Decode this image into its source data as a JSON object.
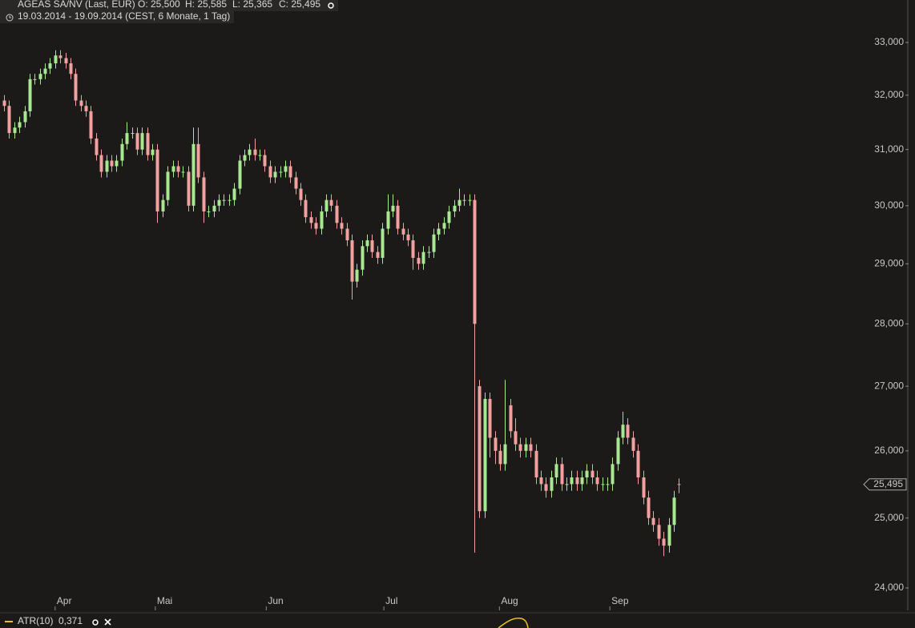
{
  "chart_data": {
    "type": "candlestick",
    "title": "AGEAS SA/NV (Last, EUR)",
    "ohlc_labels": [
      "O: 25,500",
      "H: 25,585",
      "L: 25,365",
      "C: 25,495"
    ],
    "subtitle": "19.03.2014 - 19.09.2014 (CEST, 6 Monate, 1 Tag)",
    "log": true,
    "up_color": "#a8e890",
    "down_color": "#f2a0a0",
    "ylim": [
      23.877,
      33.828
    ],
    "yticks": [
      {
        "value": 24,
        "label": "24,000"
      },
      {
        "value": 25,
        "label": "25,000"
      },
      {
        "value": 26,
        "label": "26,000"
      },
      {
        "value": 27,
        "label": "27,000"
      },
      {
        "value": 28,
        "label": "28,000"
      },
      {
        "value": 29,
        "label": "29,000"
      },
      {
        "value": 30,
        "label": "30,000"
      },
      {
        "value": 31,
        "label": "31,000"
      },
      {
        "value": 32,
        "label": "32,000"
      },
      {
        "value": 33,
        "label": "33,000"
      }
    ],
    "xlim": [
      -0.78,
      176.3
    ],
    "xticks": [
      {
        "value": 10,
        "label": "Apr"
      },
      {
        "value": 29.6,
        "label": "Mai"
      },
      {
        "value": 51.3,
        "label": "Jun"
      },
      {
        "value": 74.3,
        "label": "Jul"
      },
      {
        "value": 96.9,
        "label": "Aug"
      },
      {
        "value": 118.5,
        "label": "Sep"
      }
    ],
    "last_price": {
      "value": 25.495,
      "label": "25,495"
    },
    "indicator": {
      "name": "ATR(10)",
      "value_label": "0,371"
    },
    "open": [
      31.9,
      31.8,
      31.3,
      31.4,
      31.5,
      31.7,
      32.3,
      32.3,
      32.4,
      32.5,
      32.6,
      32.75,
      32.7,
      32.6,
      32.4,
      31.9,
      31.8,
      31.7,
      31.2,
      30.9,
      30.6,
      30.8,
      30.7,
      30.8,
      31.1,
      31.3,
      31.3,
      31.0,
      31.3,
      30.9,
      31.0,
      29.9,
      30.1,
      30.6,
      30.7,
      30.6,
      30.6,
      30.0,
      31.1,
      30.5,
      29.9,
      29.9,
      30.0,
      30.1,
      30.1,
      30.1,
      30.3,
      30.8,
      30.9,
      31.0,
      30.9,
      30.9,
      30.7,
      30.5,
      30.6,
      30.6,
      30.7,
      30.5,
      30.3,
      30.1,
      29.8,
      29.7,
      29.6,
      29.9,
      30.1,
      30.0,
      29.7,
      29.6,
      29.4,
      28.7,
      28.9,
      29.3,
      29.4,
      29.2,
      29.1,
      29.6,
      29.9,
      30.0,
      29.6,
      29.5,
      29.4,
      29.1,
      29.0,
      29.2,
      29.2,
      29.5,
      29.6,
      29.7,
      29.9,
      30.0,
      30.1,
      30.1,
      30.1,
      27.0,
      25.1,
      26.8,
      26.2,
      26.0,
      25.8,
      26.7,
      26.3,
      26.1,
      26.0,
      26.1,
      26.0,
      25.6,
      25.5,
      25.4,
      25.6,
      25.8,
      25.5,
      25.5,
      25.6,
      25.5,
      25.6,
      25.7,
      25.6,
      25.5,
      25.5,
      25.5,
      25.8,
      26.2,
      26.4,
      26.2,
      26.0,
      25.6,
      25.3,
      25.0,
      24.9,
      24.7,
      24.6,
      24.9,
      25.5
    ],
    "high": [
      32.0,
      31.9,
      31.5,
      31.6,
      31.8,
      32.4,
      32.4,
      32.5,
      32.6,
      32.7,
      32.85,
      32.85,
      32.8,
      32.7,
      32.5,
      32.0,
      31.9,
      31.8,
      31.3,
      31.0,
      30.9,
      30.9,
      30.9,
      31.2,
      31.5,
      31.4,
      31.4,
      31.4,
      31.4,
      31.1,
      31.1,
      30.2,
      30.7,
      30.8,
      30.8,
      30.7,
      30.7,
      31.4,
      31.4,
      30.6,
      30.0,
      30.1,
      30.2,
      30.2,
      30.2,
      30.4,
      30.9,
      31.0,
      31.1,
      31.2,
      31.0,
      31.0,
      30.8,
      30.7,
      30.7,
      30.8,
      30.8,
      30.6,
      30.4,
      30.2,
      29.9,
      29.8,
      30.0,
      30.2,
      30.2,
      30.1,
      29.8,
      29.7,
      29.5,
      29.0,
      29.4,
      29.5,
      29.5,
      29.3,
      29.7,
      30.2,
      30.2,
      30.1,
      29.7,
      29.6,
      29.5,
      29.2,
      29.3,
      29.3,
      29.6,
      29.7,
      29.8,
      30.0,
      30.1,
      30.3,
      30.2,
      30.2,
      30.2,
      27.1,
      26.9,
      26.9,
      26.3,
      26.1,
      27.1,
      26.8,
      26.5,
      26.2,
      26.2,
      26.2,
      26.1,
      25.7,
      25.6,
      25.7,
      25.9,
      25.9,
      25.6,
      25.7,
      25.7,
      25.7,
      25.8,
      25.8,
      25.7,
      25.6,
      25.6,
      25.9,
      26.3,
      26.6,
      26.5,
      26.3,
      26.1,
      25.7,
      25.4,
      25.1,
      25.0,
      24.8,
      25.0,
      25.4,
      25.585
    ],
    "low": [
      31.7,
      31.2,
      31.2,
      31.3,
      31.4,
      31.6,
      32.2,
      32.2,
      32.3,
      32.4,
      32.5,
      32.6,
      32.5,
      32.3,
      31.8,
      31.7,
      31.6,
      31.1,
      30.8,
      30.5,
      30.5,
      30.6,
      30.6,
      30.7,
      31.0,
      31.2,
      30.9,
      30.9,
      30.8,
      30.8,
      29.7,
      29.8,
      30.0,
      30.5,
      30.5,
      30.5,
      29.9,
      29.9,
      30.4,
      29.7,
      29.8,
      29.8,
      29.9,
      30.0,
      30.0,
      30.0,
      30.2,
      30.7,
      30.8,
      30.8,
      30.8,
      30.6,
      30.4,
      30.4,
      30.5,
      30.5,
      30.4,
      30.2,
      30.0,
      29.7,
      29.6,
      29.5,
      29.5,
      29.8,
      29.9,
      29.6,
      29.5,
      29.3,
      28.4,
      28.6,
      28.8,
      29.2,
      29.1,
      29.0,
      29.0,
      29.5,
      29.8,
      29.5,
      29.4,
      29.3,
      28.9,
      28.9,
      28.9,
      29.1,
      29.1,
      29.4,
      29.5,
      29.6,
      29.8,
      29.9,
      30.0,
      30.0,
      24.5,
      25.0,
      25.0,
      25.9,
      25.8,
      25.7,
      25.7,
      26.2,
      26.0,
      25.9,
      25.9,
      25.9,
      25.5,
      25.4,
      25.3,
      25.3,
      25.5,
      25.4,
      25.4,
      25.4,
      25.4,
      25.4,
      25.5,
      25.5,
      25.4,
      25.4,
      25.4,
      25.4,
      25.7,
      26.1,
      26.1,
      25.9,
      25.5,
      25.2,
      24.9,
      24.8,
      24.6,
      24.45,
      24.5,
      24.8,
      25.365
    ],
    "close": [
      31.8,
      31.3,
      31.4,
      31.5,
      31.7,
      32.3,
      32.3,
      32.4,
      32.5,
      32.6,
      32.75,
      32.7,
      32.6,
      32.4,
      31.9,
      31.8,
      31.7,
      31.2,
      30.9,
      30.6,
      30.8,
      30.7,
      30.8,
      31.1,
      31.3,
      31.3,
      31.0,
      31.3,
      30.9,
      31.0,
      29.9,
      30.1,
      30.6,
      30.7,
      30.6,
      30.6,
      30.0,
      31.1,
      30.5,
      29.9,
      29.9,
      30.0,
      30.1,
      30.1,
      30.1,
      30.3,
      30.8,
      30.9,
      31.0,
      30.9,
      30.9,
      30.7,
      30.5,
      30.6,
      30.6,
      30.7,
      30.5,
      30.3,
      30.1,
      29.8,
      29.7,
      29.6,
      29.9,
      30.1,
      30.0,
      29.7,
      29.6,
      29.4,
      28.7,
      28.9,
      29.3,
      29.4,
      29.2,
      29.1,
      29.6,
      29.9,
      30.0,
      29.6,
      29.5,
      29.4,
      29.1,
      29.0,
      29.2,
      29.2,
      29.5,
      29.6,
      29.7,
      29.9,
      30.0,
      30.1,
      30.1,
      30.1,
      28.0,
      25.1,
      26.8,
      26.2,
      26.0,
      25.8,
      26.1,
      26.3,
      26.1,
      26.0,
      26.1,
      26.0,
      25.6,
      25.5,
      25.4,
      25.6,
      25.8,
      25.5,
      25.5,
      25.6,
      25.5,
      25.6,
      25.7,
      25.6,
      25.5,
      25.5,
      25.5,
      25.8,
      26.2,
      26.4,
      26.2,
      26.0,
      25.6,
      25.3,
      25.0,
      24.9,
      24.7,
      24.6,
      24.9,
      25.3,
      25.495
    ]
  }
}
